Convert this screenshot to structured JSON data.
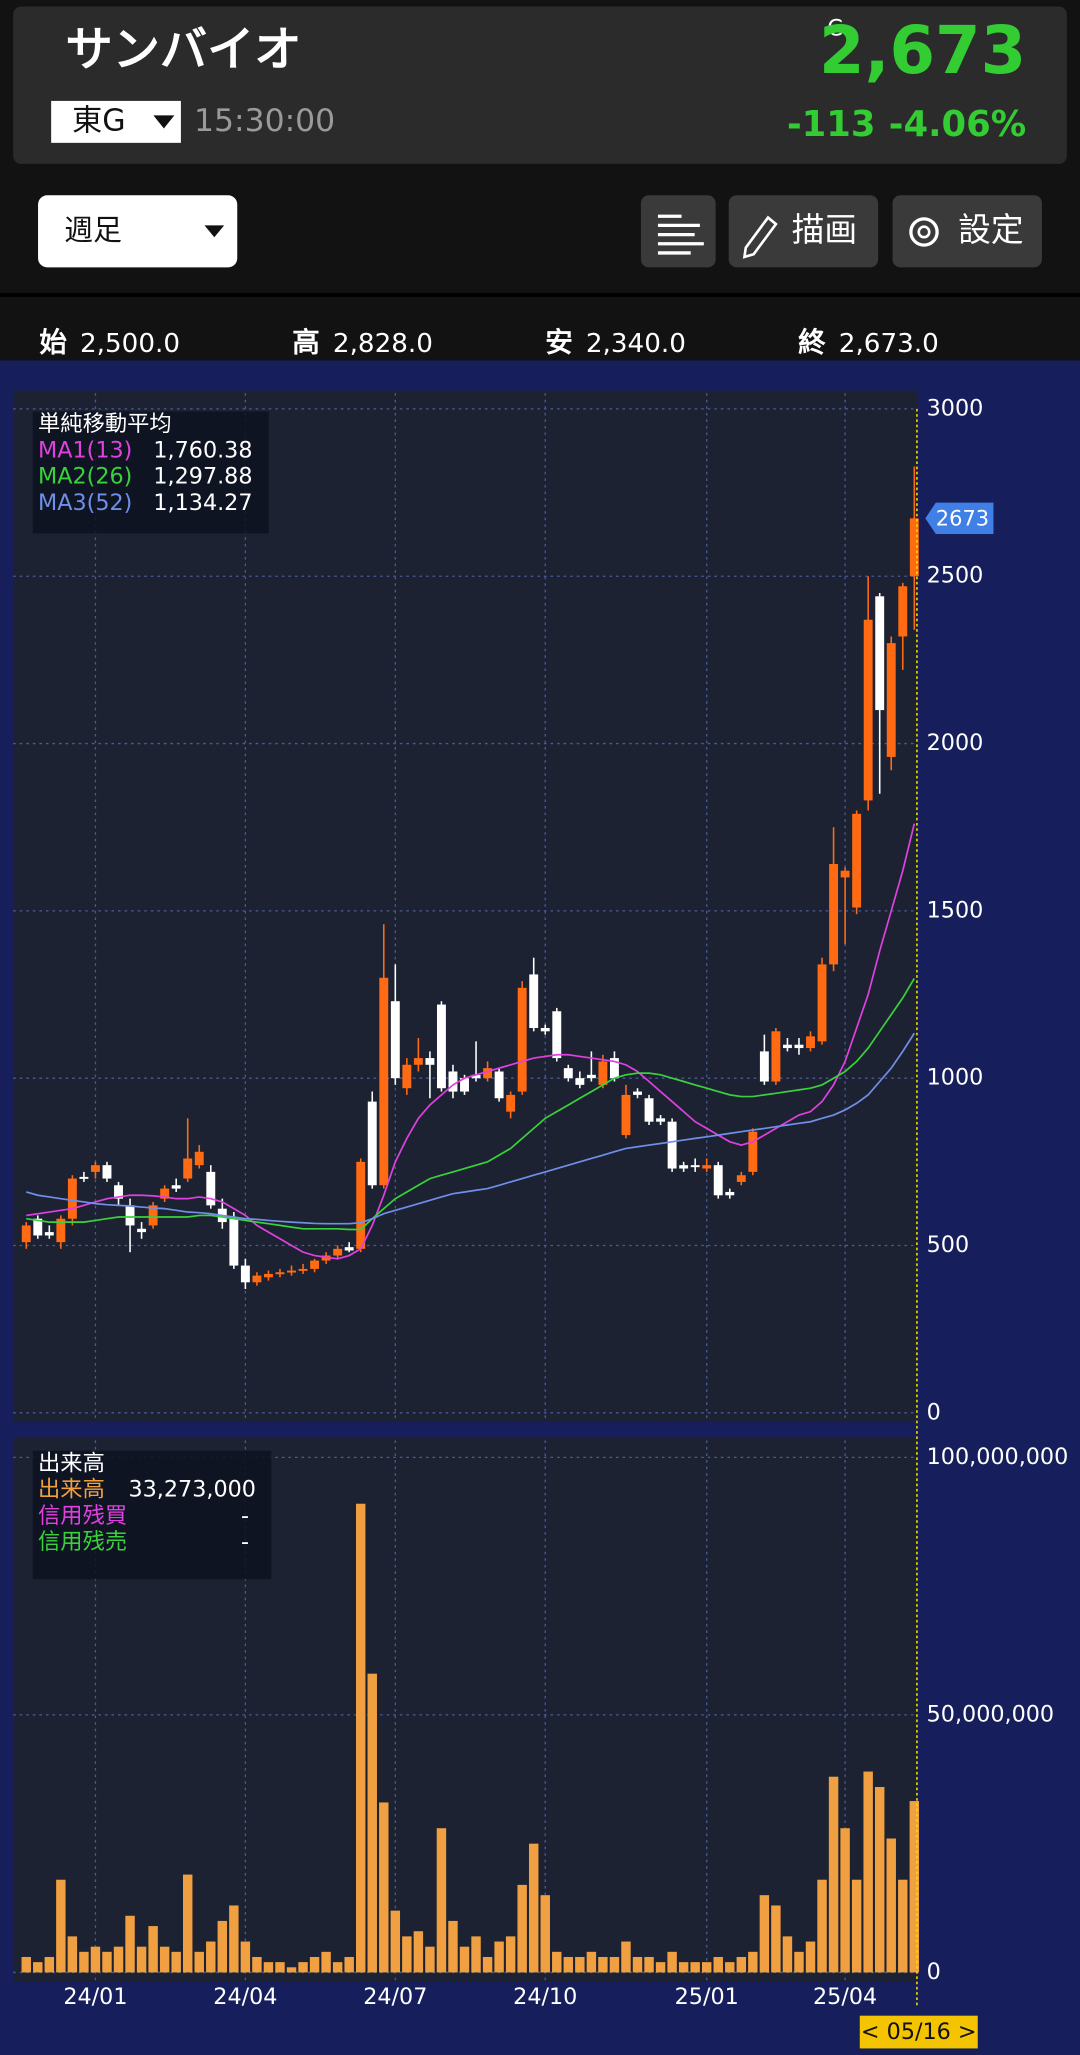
{
  "header": {
    "name": "サンバイオ",
    "market": "東G",
    "time": "15:30:00",
    "flag": "C",
    "price": "2,673",
    "change": "-113",
    "change_pct": "-4.06%"
  },
  "toolbar": {
    "period": "週足",
    "draw": "描画",
    "settings": "設定"
  },
  "ohlc": [
    {
      "label": "始",
      "value": "2,500.0"
    },
    {
      "label": "高",
      "value": "2,828.0"
    },
    {
      "label": "安",
      "value": "2,340.0"
    },
    {
      "label": "終",
      "value": "2,673.0"
    }
  ],
  "cursor_label": "< 05/16 >",
  "chart_data": [
    {
      "type": "candlestick",
      "legend_title": "単純移動平均",
      "categories": [
        null,
        null,
        null,
        null,
        null,
        null,
        "24/01",
        null,
        null,
        null,
        null,
        null,
        null,
        null,
        null,
        null,
        null,
        null,
        null,
        "24/04",
        null,
        null,
        null,
        null,
        null,
        null,
        null,
        null,
        null,
        null,
        null,
        null,
        "24/07",
        null,
        null,
        null,
        null,
        null,
        null,
        null,
        null,
        null,
        null,
        null,
        null,
        "24/10",
        null,
        null,
        null,
        null,
        null,
        null,
        null,
        null,
        null,
        null,
        null,
        null,
        null,
        "25/01",
        null,
        null,
        null,
        null,
        null,
        null,
        null,
        null,
        null,
        null,
        null,
        "25/04",
        null,
        null,
        null,
        null,
        null,
        null
      ],
      "up_color": "#ff6a13",
      "down_color": "#ffffff",
      "open": [
        510,
        580,
        540,
        510,
        580,
        705,
        720,
        740,
        680,
        620,
        550,
        560,
        640,
        680,
        700,
        740,
        720,
        610,
        580,
        440,
        390,
        405,
        415,
        420,
        425,
        430,
        455,
        470,
        495,
        490,
        930,
        680,
        1230,
        970,
        1040,
        1060,
        1220,
        1020,
        1000,
        1010,
        1000,
        1020,
        900,
        960,
        1310,
        1150,
        1200,
        1030,
        1000,
        1010,
        980,
        1060,
        830,
        960,
        940,
        880,
        870,
        740,
        740,
        730,
        740,
        660,
        690,
        720,
        1080,
        990,
        1100,
        1100,
        1090,
        1110,
        1340,
        1600,
        1510,
        1830,
        2440,
        1960,
        2320,
        2500
      ],
      "high": [
        570,
        590,
        560,
        590,
        710,
        720,
        750,
        750,
        690,
        640,
        570,
        630,
        680,
        700,
        880,
        800,
        740,
        640,
        600,
        460,
        420,
        425,
        430,
        440,
        445,
        460,
        480,
        500,
        510,
        760,
        960,
        1460,
        1340,
        1060,
        1120,
        1080,
        1230,
        1040,
        1010,
        1110,
        1050,
        1030,
        960,
        1290,
        1360,
        1160,
        1210,
        1040,
        1020,
        1080,
        1070,
        1080,
        980,
        970,
        950,
        890,
        880,
        750,
        760,
        760,
        750,
        670,
        720,
        850,
        1130,
        1150,
        1120,
        1120,
        1140,
        1360,
        1750,
        1630,
        1800,
        2500,
        2450,
        2320,
        2480,
        2828
      ],
      "low": [
        490,
        520,
        520,
        490,
        560,
        690,
        700,
        690,
        620,
        480,
        520,
        550,
        630,
        660,
        690,
        730,
        610,
        550,
        430,
        370,
        380,
        395,
        405,
        410,
        415,
        420,
        445,
        460,
        480,
        480,
        670,
        670,
        980,
        950,
        1020,
        940,
        960,
        940,
        950,
        990,
        990,
        930,
        880,
        950,
        1140,
        1130,
        1050,
        990,
        970,
        990,
        970,
        990,
        820,
        940,
        860,
        860,
        720,
        720,
        720,
        720,
        640,
        640,
        680,
        710,
        980,
        980,
        1080,
        1070,
        1080,
        1100,
        1320,
        1400,
        1490,
        1800,
        1850,
        1920,
        2220,
        2340
      ],
      "close": [
        560,
        530,
        530,
        580,
        700,
        700,
        740,
        700,
        640,
        560,
        540,
        620,
        670,
        670,
        760,
        780,
        620,
        570,
        440,
        390,
        410,
        415,
        420,
        425,
        430,
        455,
        470,
        490,
        485,
        750,
        680,
        1300,
        1000,
        1040,
        1060,
        1040,
        970,
        960,
        960,
        1000,
        1030,
        940,
        950,
        1270,
        1150,
        1140,
        1060,
        1000,
        980,
        1000,
        1050,
        1000,
        950,
        950,
        870,
        870,
        730,
        730,
        735,
        740,
        650,
        650,
        710,
        840,
        990,
        1140,
        1090,
        1090,
        1125,
        1340,
        1640,
        1620,
        1790,
        2370,
        2100,
        2300,
        2470,
        2673
      ],
      "series": [
        {
          "name": "MA1(13)",
          "color": "#e040e0",
          "legend_value": "1,760.38",
          "values": [
            590,
            595,
            600,
            605,
            610,
            620,
            630,
            640,
            645,
            650,
            650,
            648,
            645,
            640,
            640,
            645,
            640,
            630,
            610,
            590,
            560,
            540,
            520,
            500,
            480,
            470,
            465,
            460,
            470,
            490,
            560,
            650,
            750,
            820,
            880,
            920,
            950,
            980,
            1000,
            1010,
            1020,
            1030,
            1040,
            1050,
            1060,
            1065,
            1070,
            1070,
            1065,
            1060,
            1055,
            1050,
            1040,
            1020,
            990,
            960,
            930,
            900,
            870,
            850,
            830,
            810,
            800,
            810,
            830,
            850,
            870,
            890,
            900,
            930,
            980,
            1050,
            1150,
            1250,
            1380,
            1500,
            1620,
            1760.38
          ]
        },
        {
          "name": "MA2(26)",
          "color": "#3ad23a",
          "legend_value": "1,297.88",
          "values": [
            580,
            575,
            570,
            570,
            570,
            570,
            575,
            580,
            585,
            585,
            585,
            585,
            585,
            585,
            585,
            590,
            590,
            585,
            580,
            575,
            570,
            565,
            560,
            555,
            550,
            550,
            550,
            550,
            548,
            548,
            580,
            610,
            640,
            660,
            680,
            700,
            710,
            720,
            730,
            740,
            750,
            770,
            790,
            820,
            850,
            880,
            900,
            920,
            940,
            960,
            980,
            1000,
            1010,
            1015,
            1015,
            1010,
            1000,
            990,
            980,
            970,
            960,
            950,
            945,
            945,
            950,
            955,
            960,
            965,
            970,
            980,
            1000,
            1020,
            1050,
            1090,
            1140,
            1190,
            1240,
            1297.88
          ]
        },
        {
          "name": "MA3(52)",
          "color": "#6f8fe8",
          "legend_value": "1,134.27",
          "values": [
            660,
            650,
            645,
            640,
            635,
            630,
            625,
            622,
            620,
            618,
            615,
            612,
            610,
            605,
            600,
            598,
            595,
            590,
            585,
            580,
            578,
            575,
            572,
            570,
            568,
            566,
            565,
            565,
            565,
            568,
            580,
            595,
            605,
            615,
            625,
            635,
            645,
            655,
            660,
            665,
            670,
            680,
            690,
            700,
            710,
            720,
            730,
            740,
            750,
            760,
            770,
            780,
            790,
            795,
            800,
            805,
            810,
            815,
            820,
            825,
            830,
            835,
            840,
            845,
            850,
            855,
            860,
            865,
            870,
            880,
            890,
            905,
            925,
            950,
            990,
            1030,
            1080,
            1134.27
          ]
        }
      ],
      "ylim": [
        0,
        3000
      ],
      "yticks": [
        0,
        500,
        1000,
        1500,
        2000,
        2500,
        3000
      ],
      "grid": true
    },
    {
      "type": "bar",
      "legend_title": "出来高",
      "color": "#f0a040",
      "series": [
        {
          "name": "出来高",
          "color": "#f0a040",
          "legend_value": "33,273,000",
          "values": [
            3000000,
            2000000,
            3000000,
            18000000,
            7000000,
            4000000,
            5000000,
            4000000,
            5000000,
            11000000,
            5000000,
            9000000,
            5000000,
            4000000,
            19000000,
            4000000,
            6000000,
            10000000,
            13000000,
            6000000,
            3000000,
            2000000,
            2000000,
            1000000,
            2000000,
            3000000,
            4000000,
            2000000,
            3000000,
            91000000,
            58000000,
            33000000,
            12000000,
            7000000,
            8000000,
            5000000,
            28000000,
            10000000,
            5000000,
            7000000,
            3000000,
            6000000,
            7000000,
            17000000,
            25000000,
            15000000,
            4000000,
            3000000,
            3000000,
            4000000,
            3000000,
            3000000,
            6000000,
            3000000,
            3000000,
            2000000,
            4000000,
            2000000,
            2000000,
            2000000,
            3000000,
            2000000,
            3000000,
            4000000,
            15000000,
            13000000,
            7000000,
            4000000,
            6000000,
            18000000,
            38000000,
            28000000,
            18000000,
            39000000,
            36000000,
            26000000,
            18000000,
            33273000
          ]
        }
      ],
      "legend_items": [
        {
          "name": "信用残買",
          "color": "#e040e0",
          "label": "-"
        },
        {
          "name": "信用残売",
          "color": "#3ad23a",
          "label": "-"
        }
      ],
      "ylim": [
        0,
        100000000
      ],
      "yticks": [
        0,
        {
          "value": 50000000,
          "label": "50,000,000"
        },
        {
          "value": 100000000,
          "label": "100,000,000"
        }
      ],
      "grid": true
    }
  ]
}
